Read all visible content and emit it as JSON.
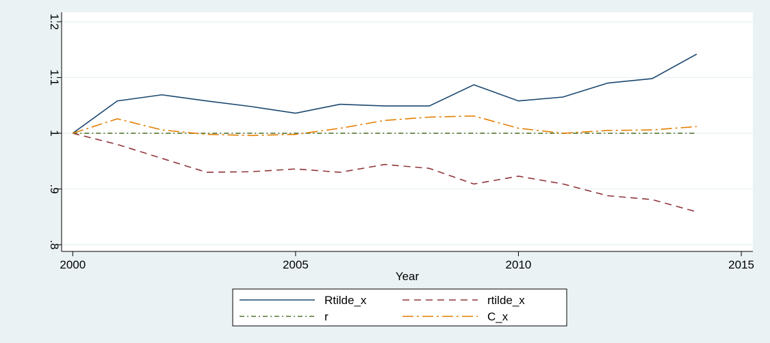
{
  "chart_data": {
    "type": "line",
    "x_label": "Year",
    "x": [
      2000,
      2001,
      2002,
      2003,
      2004,
      2005,
      2006,
      2007,
      2008,
      2009,
      2010,
      2011,
      2012,
      2013,
      2014
    ],
    "xlim": [
      1999.75,
      2015.26
    ],
    "xticks": [
      2000,
      2005,
      2010,
      2015
    ],
    "ylim": [
      0.788,
      1.217
    ],
    "yticks": [
      {
        "value": 0.8,
        "label": ".8"
      },
      {
        "value": 0.9,
        "label": ".9"
      },
      1,
      1.1,
      1.2
    ],
    "grid": true,
    "legend": "bottom",
    "series": [
      {
        "name": "Rtilde_x",
        "color": "#1a476f",
        "dash": "solid",
        "values": [
          1.0,
          1.058,
          1.069,
          1.058,
          1.048,
          1.036,
          1.052,
          1.049,
          1.049,
          1.087,
          1.058,
          1.065,
          1.09,
          1.098,
          1.142
        ]
      },
      {
        "name": "rtilde_x",
        "color": "#90353b",
        "dash": "dash",
        "values": [
          1.0,
          0.98,
          0.955,
          0.93,
          0.931,
          0.936,
          0.93,
          0.944,
          0.937,
          0.909,
          0.923,
          0.909,
          0.888,
          0.881,
          0.859
        ]
      },
      {
        "name": "r",
        "color": "#55752f",
        "dash": "dashdot",
        "values": [
          1.0,
          1.0,
          1.0,
          1.0,
          1.0,
          1.0,
          1.0,
          1.0,
          1.0,
          1.0,
          1.0,
          1.0,
          1.0,
          1.0,
          1.0
        ]
      },
      {
        "name": "C_x",
        "color": "#e37e00",
        "dash": "longdashdot",
        "values": [
          1.0,
          1.026,
          1.006,
          0.998,
          0.996,
          0.998,
          1.009,
          1.023,
          1.029,
          1.031,
          1.009,
          1.0,
          1.005,
          1.006,
          1.012
        ]
      }
    ]
  }
}
